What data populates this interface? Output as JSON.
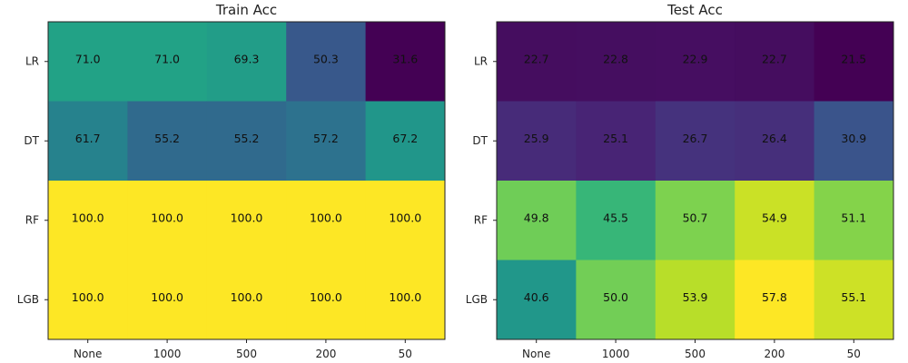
{
  "chart_data": [
    {
      "type": "heatmap",
      "title": "Train Acc",
      "x_categories": [
        "None",
        "1000",
        "500",
        "200",
        "50"
      ],
      "y_categories": [
        "LR",
        "DT",
        "RF",
        "LGB"
      ],
      "values": [
        [
          71.0,
          71.0,
          69.3,
          50.3,
          31.6
        ],
        [
          61.7,
          55.2,
          55.2,
          57.2,
          67.2
        ],
        [
          100.0,
          100.0,
          100.0,
          100.0,
          100.0
        ],
        [
          100.0,
          100.0,
          100.0,
          100.0,
          100.0
        ]
      ],
      "colormap": "viridis"
    },
    {
      "type": "heatmap",
      "title": "Test Acc",
      "x_categories": [
        "None",
        "1000",
        "500",
        "200",
        "50"
      ],
      "y_categories": [
        "LR",
        "DT",
        "RF",
        "LGB"
      ],
      "values": [
        [
          22.7,
          22.8,
          22.9,
          22.7,
          21.5
        ],
        [
          25.9,
          25.1,
          26.7,
          26.4,
          30.9
        ],
        [
          49.8,
          45.5,
          50.7,
          54.9,
          51.1
        ],
        [
          40.6,
          50.0,
          53.9,
          57.8,
          55.1
        ]
      ],
      "colormap": "viridis"
    }
  ]
}
